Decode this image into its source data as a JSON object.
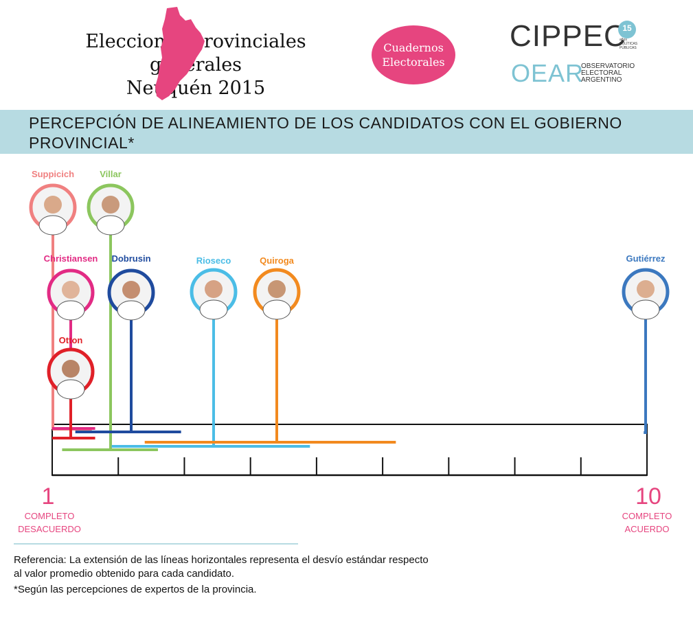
{
  "header": {
    "title_line1": "Elecciones provinciales generales",
    "title_line2": "Neuquén 2015",
    "badge_line1": "Cuadernos",
    "badge_line2": "Electorales",
    "logo1": "CIPPEC",
    "logo1_years": "15",
    "logo1_years_label": "años",
    "logo1_sub1": "POLÍTICAS",
    "logo1_sub2": "PÚBLICAS",
    "logo2": "OEAR",
    "logo2_sub1": "OBSERVATORIO",
    "logo2_sub2": "ELECTORAL",
    "logo2_sub3": "ARGENTINO"
  },
  "colors": {
    "pink": "#e6457f",
    "band": "#b7dbe2",
    "province_map": "#e6457f"
  },
  "footer": {
    "reference_line1": "Referencia:  La extensión de las líneas horizontales representa el desvío estándar respecto",
    "reference_line2": "al valor promedio obtenido para cada candidato.",
    "note": "*Según las percepciones de expertos de la provincia."
  },
  "chart_data": {
    "type": "scatter",
    "title": "PERCEPCIÓN DE ALINEAMIENTO DE LOS CANDIDATOS CON EL GOBIERNO PROVINCIAL*",
    "xlim": [
      1,
      10
    ],
    "min_label": "1",
    "min_text_line1": "COMPLETO",
    "min_text_line2": "DESACUERDO",
    "max_label": "10",
    "max_text_line1": "COMPLETO",
    "max_text_line2": "ACUERDO",
    "series": [
      {
        "name": "Suppicich",
        "mean": 1.05,
        "sd_low": 1.0,
        "sd_high": 1.6,
        "color": "#f08080"
      },
      {
        "name": "Villar",
        "mean": 1.85,
        "sd_low": 1.15,
        "sd_high": 2.6,
        "color": "#8cc65e"
      },
      {
        "name": "Christiansen",
        "mean": 1.3,
        "sd_low": 1.0,
        "sd_high": 1.65,
        "color": "#e22b84"
      },
      {
        "name": "Dobrusin",
        "mean": 2.2,
        "sd_low": 1.35,
        "sd_high": 2.95,
        "color": "#1f4b9e"
      },
      {
        "name": "Otton",
        "mean": 1.3,
        "sd_low": 1.0,
        "sd_high": 1.65,
        "color": "#e02028"
      },
      {
        "name": "Rioseco",
        "mean": 3.4,
        "sd_low": 1.9,
        "sd_high": 4.9,
        "color": "#4bbde6"
      },
      {
        "name": "Quiroga",
        "mean": 4.3,
        "sd_low": 2.4,
        "sd_high": 6.2,
        "color": "#f28a1f"
      },
      {
        "name": "Gutiérrez",
        "mean": 9.95,
        "sd_low": 9.95,
        "sd_high": 10.0,
        "color": "#3b78bf"
      }
    ]
  }
}
